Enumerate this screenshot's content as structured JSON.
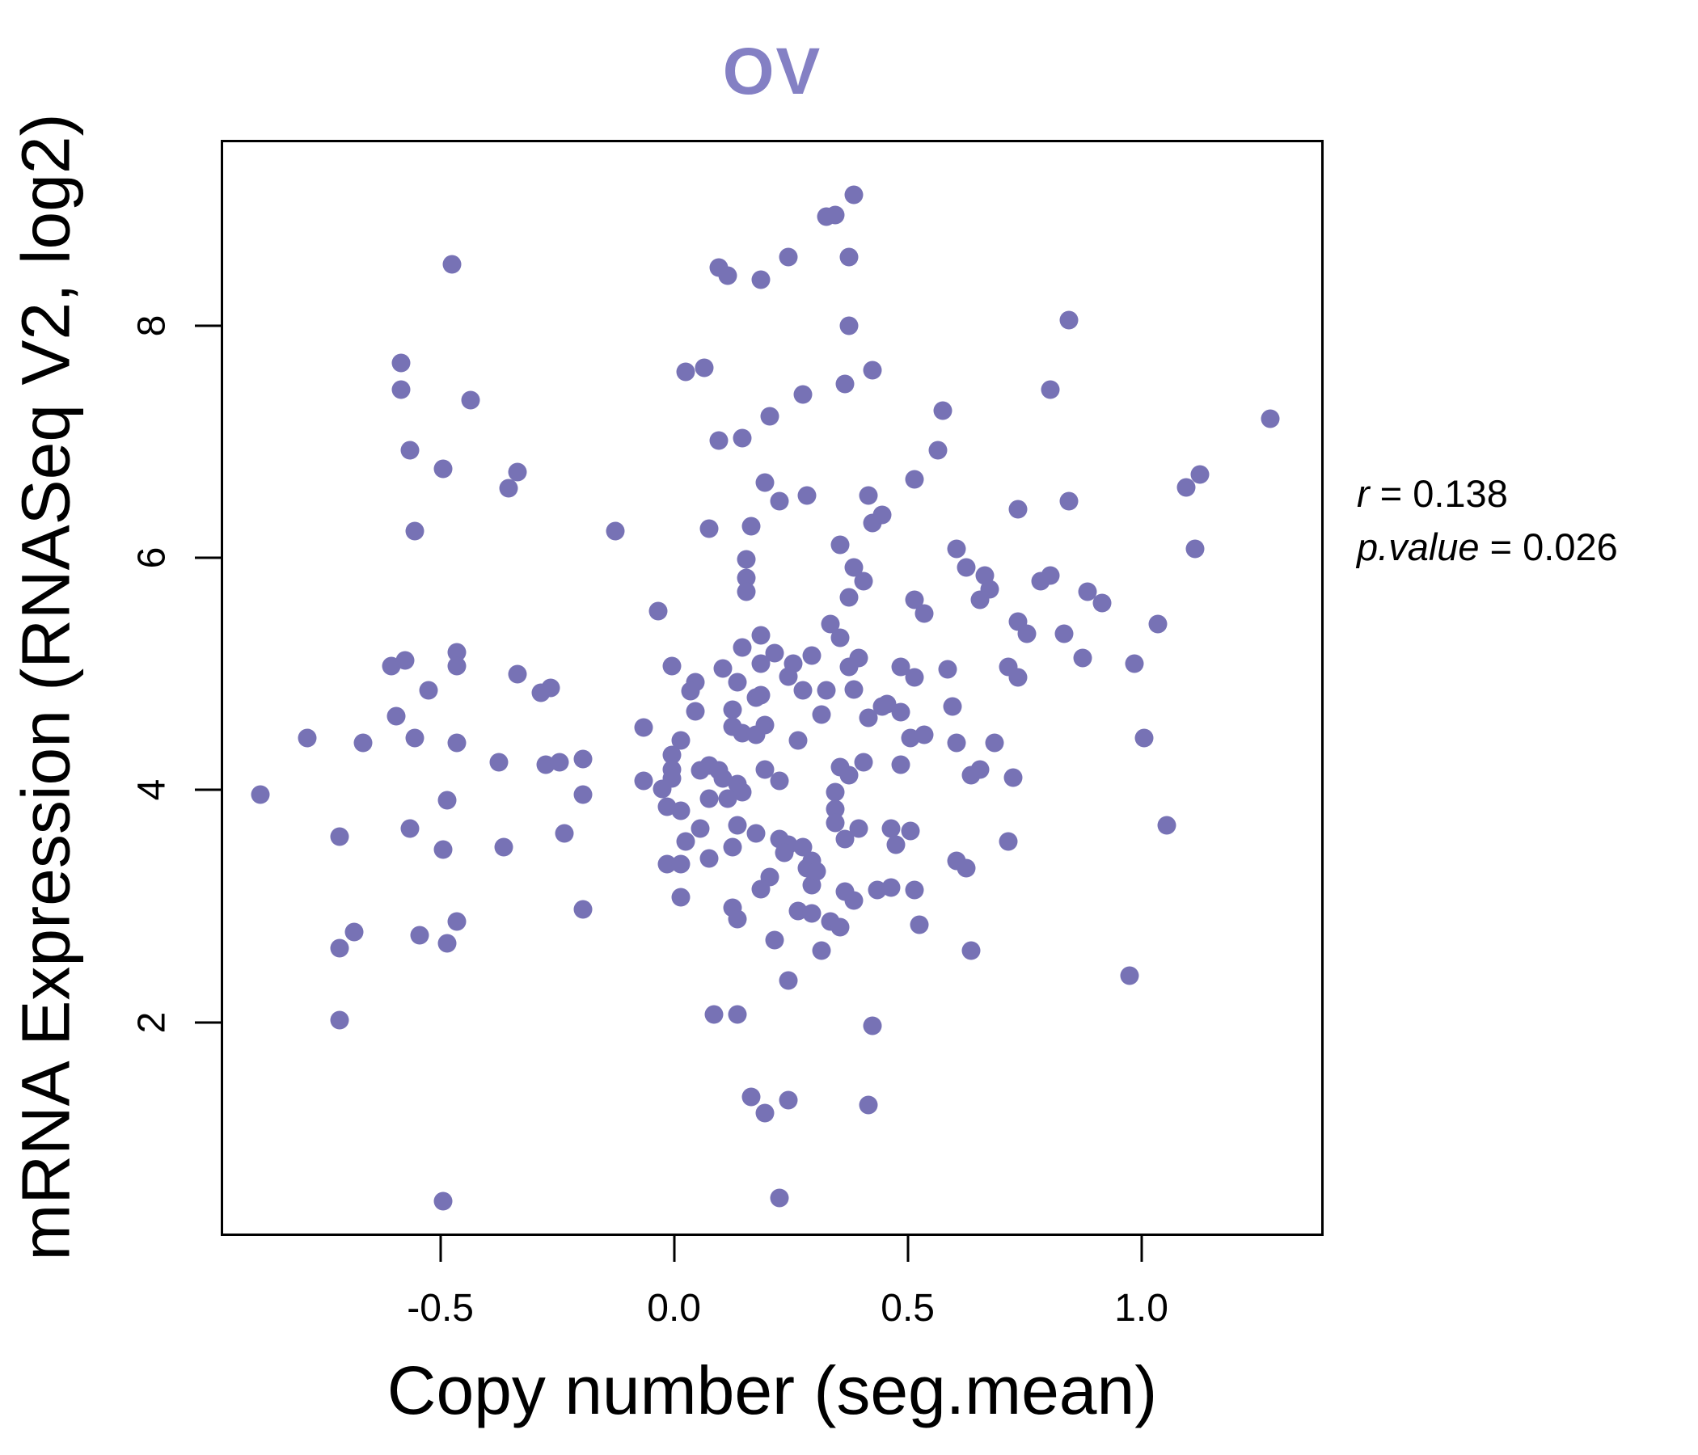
{
  "title": {
    "text": "OV"
  },
  "colors": {
    "title": "#8480c4",
    "point": "#7772b5",
    "text": "#000000",
    "axis": "#000000"
  },
  "axes": {
    "x": {
      "label": "Copy number (seg.mean)"
    },
    "y": {
      "label": "mRNA Expression (RNASeq V2, log2)"
    }
  },
  "annotation": {
    "r_var": "r",
    "r_eq": " = 0.138",
    "p_var": "p.value",
    "p_eq": " = 0.026"
  },
  "chart_data": {
    "type": "scatter",
    "title": "OV",
    "xlabel": "Copy number (seg.mean)",
    "ylabel": "mRNA Expression (RNASeq V2, log2)",
    "xlim": [
      -0.97,
      1.39
    ],
    "ylim": [
      0.16,
      9.6
    ],
    "grid": false,
    "legend": "none",
    "point_color": "#7772b5",
    "stats": {
      "r": 0.138,
      "p_value": 0.026
    },
    "x_ticks": [
      {
        "value": -0.5,
        "label": "-0.5"
      },
      {
        "value": 0.0,
        "label": "0.0"
      },
      {
        "value": 0.5,
        "label": "0.5"
      },
      {
        "value": 1.0,
        "label": "1.0"
      }
    ],
    "y_ticks": [
      {
        "value": 2,
        "label": "2"
      },
      {
        "value": 4,
        "label": "4"
      },
      {
        "value": 6,
        "label": "6"
      },
      {
        "value": 8,
        "label": "8"
      }
    ],
    "points": [
      [
        -0.48,
        8.55
      ],
      [
        0.09,
        8.52
      ],
      [
        0.11,
        8.45
      ],
      [
        0.18,
        8.42
      ],
      [
        0.38,
        9.15
      ],
      [
        0.32,
        8.96
      ],
      [
        0.34,
        8.97
      ],
      [
        0.24,
        8.61
      ],
      [
        0.37,
        8.61
      ],
      [
        0.37,
        8.02
      ],
      [
        0.84,
        8.07
      ],
      [
        -0.59,
        7.7
      ],
      [
        -0.59,
        7.47
      ],
      [
        -0.44,
        7.38
      ],
      [
        0.02,
        7.62
      ],
      [
        0.06,
        7.66
      ],
      [
        0.42,
        7.64
      ],
      [
        0.36,
        7.52
      ],
      [
        0.27,
        7.43
      ],
      [
        0.8,
        7.47
      ],
      [
        0.57,
        7.29
      ],
      [
        1.27,
        7.22
      ],
      [
        0.2,
        7.24
      ],
      [
        0.09,
        7.03
      ],
      [
        0.14,
        7.05
      ],
      [
        -0.57,
        6.95
      ],
      [
        0.56,
        6.95
      ],
      [
        -0.5,
        6.79
      ],
      [
        -0.34,
        6.76
      ],
      [
        -0.36,
        6.62
      ],
      [
        0.19,
        6.67
      ],
      [
        0.51,
        6.7
      ],
      [
        0.41,
        6.56
      ],
      [
        0.22,
        6.51
      ],
      [
        0.28,
        6.56
      ],
      [
        0.84,
        6.51
      ],
      [
        1.09,
        6.63
      ],
      [
        1.12,
        6.74
      ],
      [
        -0.56,
        6.25
      ],
      [
        -0.13,
        6.25
      ],
      [
        0.07,
        6.27
      ],
      [
        0.16,
        6.29
      ],
      [
        0.42,
        6.32
      ],
      [
        0.44,
        6.39
      ],
      [
        0.73,
        6.44
      ],
      [
        1.11,
        6.1
      ],
      [
        0.35,
        6.13
      ],
      [
        0.6,
        6.1
      ],
      [
        0.15,
        6.01
      ],
      [
        0.15,
        5.85
      ],
      [
        0.15,
        5.73
      ],
      [
        -0.04,
        5.56
      ],
      [
        0.38,
        5.94
      ],
      [
        0.4,
        5.82
      ],
      [
        0.37,
        5.68
      ],
      [
        0.62,
        5.94
      ],
      [
        0.66,
        5.87
      ],
      [
        0.67,
        5.75
      ],
      [
        0.65,
        5.66
      ],
      [
        0.78,
        5.82
      ],
      [
        0.8,
        5.87
      ],
      [
        0.88,
        5.73
      ],
      [
        0.91,
        5.63
      ],
      [
        0.73,
        5.47
      ],
      [
        0.75,
        5.37
      ],
      [
        0.83,
        5.37
      ],
      [
        0.51,
        5.66
      ],
      [
        0.53,
        5.54
      ],
      [
        1.03,
        5.45
      ],
      [
        0.33,
        5.45
      ],
      [
        0.35,
        5.33
      ],
      [
        0.29,
        5.18
      ],
      [
        0.25,
        5.11
      ],
      [
        0.37,
        5.08
      ],
      [
        0.39,
        5.16
      ],
      [
        0.48,
        5.08
      ],
      [
        0.51,
        4.99
      ],
      [
        0.58,
        5.06
      ],
      [
        0.71,
        5.08
      ],
      [
        0.73,
        4.99
      ],
      [
        0.87,
        5.16
      ],
      [
        0.98,
        5.11
      ],
      [
        0.14,
        5.25
      ],
      [
        0.18,
        5.35
      ],
      [
        0.21,
        5.2
      ],
      [
        0.18,
        5.11
      ],
      [
        -0.61,
        5.09
      ],
      [
        -0.58,
        5.14
      ],
      [
        -0.47,
        5.21
      ],
      [
        -0.47,
        5.09
      ],
      [
        -0.34,
        5.02
      ],
      [
        -0.27,
        4.9
      ],
      [
        -0.53,
        4.88
      ],
      [
        0.13,
        4.95
      ],
      [
        -0.01,
        5.09
      ],
      [
        0.1,
        5.07
      ],
      [
        0.24,
        5.0
      ],
      [
        0.27,
        4.88
      ],
      [
        0.04,
        4.95
      ],
      [
        0.03,
        4.87
      ],
      [
        0.17,
        4.82
      ],
      [
        0.18,
        4.84
      ],
      [
        0.32,
        4.88
      ],
      [
        0.38,
        4.89
      ],
      [
        0.04,
        4.7
      ],
      [
        0.31,
        4.67
      ],
      [
        0.41,
        4.64
      ],
      [
        0.44,
        4.74
      ],
      [
        -0.07,
        4.56
      ],
      [
        0.12,
        4.71
      ],
      [
        0.12,
        4.57
      ],
      [
        0.14,
        4.51
      ],
      [
        0.17,
        4.5
      ],
      [
        0.19,
        4.58
      ],
      [
        0.01,
        4.45
      ],
      [
        0.26,
        4.45
      ],
      [
        -0.01,
        4.32
      ],
      [
        -0.01,
        4.2
      ],
      [
        0.05,
        4.19
      ],
      [
        0.07,
        4.23
      ],
      [
        0.09,
        4.19
      ],
      [
        0.1,
        4.12
      ],
      [
        0.19,
        4.2
      ],
      [
        0.22,
        4.1
      ],
      [
        -0.03,
        4.03
      ],
      [
        -0.01,
        4.12
      ],
      [
        0.13,
        4.07
      ],
      [
        0.14,
        4.0
      ],
      [
        0.07,
        3.95
      ],
      [
        0.11,
        3.95
      ],
      [
        0.34,
        4.0
      ],
      [
        0.34,
        3.86
      ],
      [
        -0.02,
        3.88
      ],
      [
        0.01,
        3.84
      ],
      [
        0.39,
        3.69
      ],
      [
        0.46,
        3.69
      ],
      [
        0.05,
        3.69
      ],
      [
        0.13,
        3.72
      ],
      [
        0.02,
        3.58
      ],
      [
        0.17,
        3.65
      ],
      [
        0.22,
        3.6
      ],
      [
        0.24,
        3.55
      ],
      [
        0.27,
        3.53
      ],
      [
        0.12,
        3.53
      ],
      [
        0.07,
        3.43
      ],
      [
        -0.02,
        3.38
      ],
      [
        0.01,
        3.38
      ],
      [
        0.29,
        3.41
      ],
      [
        0.36,
        3.6
      ],
      [
        0.2,
        3.27
      ],
      [
        0.18,
        3.17
      ],
      [
        0.29,
        3.2
      ],
      [
        0.36,
        3.15
      ],
      [
        0.38,
        3.07
      ],
      [
        0.01,
        3.1
      ],
      [
        0.12,
        3.01
      ],
      [
        0.13,
        2.91
      ],
      [
        0.26,
        2.98
      ],
      [
        0.29,
        2.96
      ],
      [
        0.33,
        2.89
      ],
      [
        0.35,
        2.84
      ],
      [
        0.21,
        2.73
      ],
      [
        -0.29,
        4.86
      ],
      [
        -0.6,
        4.66
      ],
      [
        -0.79,
        4.47
      ],
      [
        -0.67,
        4.43
      ],
      [
        -0.56,
        4.47
      ],
      [
        -0.47,
        4.43
      ],
      [
        -0.38,
        4.26
      ],
      [
        -0.28,
        4.24
      ],
      [
        -0.25,
        4.26
      ],
      [
        -0.2,
        4.29
      ],
      [
        -0.07,
        4.1
      ],
      [
        -0.2,
        3.98
      ],
      [
        -0.89,
        3.98
      ],
      [
        -0.49,
        3.93
      ],
      [
        -0.72,
        3.62
      ],
      [
        -0.57,
        3.69
      ],
      [
        -0.5,
        3.51
      ],
      [
        -0.37,
        3.53
      ],
      [
        -0.24,
        3.65
      ],
      [
        -0.69,
        2.8
      ],
      [
        -0.55,
        2.77
      ],
      [
        -0.47,
        2.89
      ],
      [
        -0.49,
        2.7
      ],
      [
        -0.72,
        2.66
      ],
      [
        -0.72,
        2.04
      ],
      [
        -0.2,
        2.99
      ],
      [
        -0.5,
        0.48
      ],
      [
        1.0,
        4.47
      ],
      [
        1.05,
        3.72
      ],
      [
        0.71,
        3.58
      ],
      [
        0.97,
        2.42
      ],
      [
        0.45,
        4.76
      ],
      [
        0.48,
        4.69
      ],
      [
        0.59,
        4.74
      ],
      [
        0.5,
        4.47
      ],
      [
        0.53,
        4.5
      ],
      [
        0.6,
        4.43
      ],
      [
        0.68,
        4.43
      ],
      [
        0.35,
        4.22
      ],
      [
        0.37,
        4.15
      ],
      [
        0.4,
        4.26
      ],
      [
        0.48,
        4.24
      ],
      [
        0.63,
        4.15
      ],
      [
        0.65,
        4.2
      ],
      [
        0.72,
        4.13
      ],
      [
        0.34,
        3.74
      ],
      [
        0.5,
        3.67
      ],
      [
        0.47,
        3.55
      ],
      [
        0.23,
        3.48
      ],
      [
        0.28,
        3.35
      ],
      [
        0.3,
        3.32
      ],
      [
        0.43,
        3.16
      ],
      [
        0.46,
        3.18
      ],
      [
        0.52,
        2.86
      ],
      [
        0.51,
        3.16
      ],
      [
        0.6,
        3.41
      ],
      [
        0.62,
        3.35
      ],
      [
        0.63,
        2.64
      ],
      [
        0.31,
        2.64
      ],
      [
        0.24,
        2.38
      ],
      [
        0.42,
        1.99
      ],
      [
        0.08,
        2.09
      ],
      [
        0.13,
        2.09
      ],
      [
        0.16,
        1.38
      ],
      [
        0.19,
        1.24
      ],
      [
        0.24,
        1.35
      ],
      [
        0.41,
        1.31
      ],
      [
        0.22,
        0.51
      ]
    ]
  }
}
